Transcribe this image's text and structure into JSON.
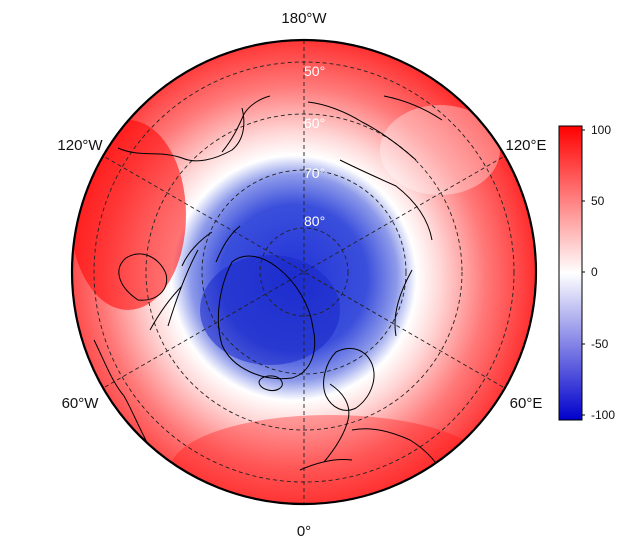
{
  "map": {
    "projection": "north-polar-stereographic",
    "longitude_labels": {
      "top": "180°W",
      "upper_left": "120°W",
      "upper_right": "120°E",
      "lower_left": "60°W",
      "lower_right": "60°E",
      "bottom": "0°"
    },
    "latitude_labels": [
      "50°",
      "60°",
      "70°",
      "80°"
    ],
    "colorbar": {
      "min": -100,
      "max": 100,
      "ticks": [
        "100",
        "50",
        "0",
        "-50",
        "-100"
      ],
      "colors": {
        "low": "#0000cc",
        "mid": "#ffffff",
        "high": "#ff0000"
      }
    },
    "field_note": "negative anomaly centred over the pole / Greenland; positive values at mid-latitudes"
  }
}
